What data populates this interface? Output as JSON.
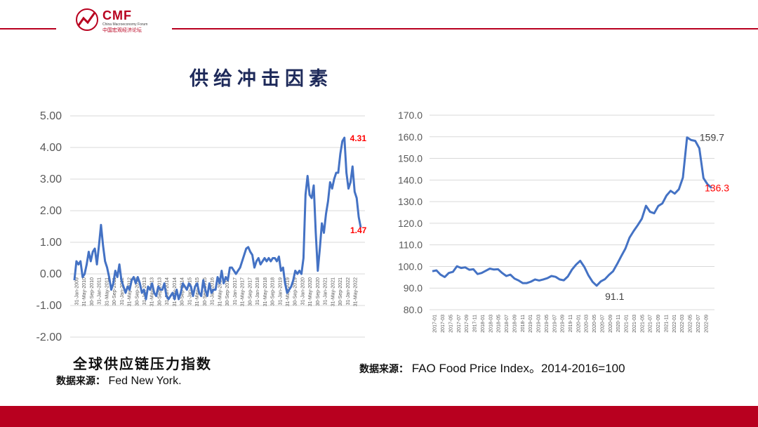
{
  "logo": {
    "name": "CMF",
    "subtitle": "China Macroeconomy Forum",
    "subtitle_cn": "中国宏观经济论坛"
  },
  "slide_title": "供给冲击因素",
  "left_caption": "全球供应链压力指数",
  "left_source_prefix": "数据来源：",
  "left_source": "Fed New York.",
  "right_source_prefix": "数据来源：",
  "right_source": "FAO Food Price Index。2014-2016=100",
  "colors": {
    "brand": "#b8001f",
    "line": "#4472c4",
    "annotation_red": "#ff0000",
    "grid": "#d9d9d9"
  },
  "chart_data": [
    {
      "type": "line",
      "title": "",
      "ylim": [
        -2.0,
        5.0
      ],
      "y_ticks": [
        "5.00",
        "4.00",
        "3.00",
        "2.00",
        "1.00",
        "0.00",
        "-1.00",
        "-2.00"
      ],
      "grid": true,
      "x_tick_labels": [
        "31-Jan-2009",
        "31-May-2010",
        "30-Sep-2010",
        "31-Jan-2011",
        "31-May-2011",
        "30-Sep-2011",
        "31-Jan-2012",
        "31-May-2012",
        "30-Sep-2012",
        "31-Jan-2013",
        "31-May-2013",
        "30-Sep-2013",
        "31-Jan-2014",
        "31-May-2014",
        "30-Sep-2014",
        "31-Jan-2015",
        "31-May-2015",
        "30-Sep-2015",
        "31-Jan-2016",
        "31-May-2016",
        "30-Sep-2016",
        "31-Jan-2017",
        "31-May-2017",
        "30-Sep-2017",
        "31-Jan-2018",
        "31-May-2018",
        "30-Sep-2018",
        "31-Jan-2019",
        "31-May-2019",
        "30-Sep-2019",
        "31-Jan-2020",
        "31-May-2020",
        "30-Sep-2020",
        "31-Jan-2021",
        "31-May-2021",
        "30-Sep-2021",
        "31-Jan-2022",
        "31-May-2022"
      ],
      "annotations": [
        {
          "label": "4.31",
          "value": 4.31
        },
        {
          "label": "1.47",
          "value": 1.47
        }
      ],
      "series": [
        {
          "values": [
            -0.2,
            0.4,
            0.3,
            0.4,
            -0.1,
            0.0,
            0.3,
            0.7,
            0.4,
            0.7,
            0.8,
            0.3,
            0.9,
            1.55,
            0.9,
            0.4,
            0.2,
            -0.1,
            -0.5,
            -0.3,
            0.1,
            -0.1,
            0.3,
            -0.2,
            -0.4,
            -0.6,
            -0.4,
            -0.5,
            -0.2,
            -0.1,
            -0.3,
            -0.1,
            -0.3,
            -0.6,
            -0.5,
            -0.8,
            -0.4,
            -0.5,
            -0.3,
            -0.6,
            -0.7,
            -0.4,
            -0.5,
            -0.5,
            -0.3,
            -0.7,
            -0.8,
            -0.7,
            -0.6,
            -0.8,
            -0.5,
            -0.8,
            -0.6,
            -0.3,
            -0.4,
            -0.5,
            -0.3,
            -0.4,
            -0.7,
            -0.4,
            -0.3,
            -0.6,
            -0.7,
            -0.2,
            -0.5,
            -0.7,
            -0.3,
            -0.6,
            -0.5,
            -0.5,
            -0.1,
            -0.3,
            0.1,
            -0.3,
            -0.1,
            -0.2,
            0.2,
            0.2,
            0.1,
            0.0,
            0.1,
            0.2,
            0.4,
            0.6,
            0.8,
            0.85,
            0.7,
            0.6,
            0.2,
            0.4,
            0.5,
            0.3,
            0.4,
            0.5,
            0.4,
            0.5,
            0.4,
            0.5,
            0.5,
            0.4,
            0.55,
            0.1,
            0.2,
            -0.3,
            -0.6,
            -0.5,
            -0.4,
            -0.2,
            0.1,
            0.0,
            0.1,
            0.0,
            0.5,
            2.5,
            3.1,
            2.5,
            2.4,
            2.8,
            1.3,
            0.1,
            0.8,
            1.6,
            1.3,
            1.9,
            2.3,
            2.9,
            2.7,
            3.0,
            3.2,
            3.2,
            3.8,
            4.2,
            4.31,
            3.2,
            2.7,
            2.9,
            3.4,
            2.6,
            2.4,
            1.8,
            1.47
          ]
        }
      ]
    },
    {
      "type": "line",
      "title": "",
      "ylim": [
        80.0,
        170.0
      ],
      "y_ticks": [
        "170.0",
        "160.0",
        "150.0",
        "140.0",
        "130.0",
        "120.0",
        "110.0",
        "100.0",
        "90.0",
        "80.0"
      ],
      "grid": true,
      "x_tick_labels": [
        "2017-01",
        "2017-03",
        "2017-05",
        "2017-07",
        "2017-09",
        "2017-11",
        "2018-01",
        "2018-03",
        "2018-05",
        "2018-07",
        "2018-09",
        "2018-11",
        "2019-01",
        "2019-03",
        "2019-05",
        "2019-07",
        "2019-09",
        "2019-11",
        "2020-01",
        "2020-03",
        "2020-05",
        "2020-07",
        "2020-09",
        "2020-11",
        "2021-01",
        "2021-03",
        "2021-05",
        "2021-07",
        "2021-09",
        "2021-11",
        "2022-01",
        "2022-03",
        "2022-05",
        "2022-07",
        "2022-09"
      ],
      "annotations": [
        {
          "label": "91.1",
          "value": 91.1
        },
        {
          "label": "159.7",
          "value": 159.7
        },
        {
          "label": "136.3",
          "value": 136.3
        }
      ],
      "series": [
        {
          "values": [
            97.8,
            98.2,
            96.2,
            95.1,
            97.0,
            97.5,
            100.1,
            99.3,
            99.6,
            98.5,
            98.7,
            96.5,
            97.0,
            98.0,
            99.0,
            98.6,
            98.7,
            97.0,
            95.6,
            96.2,
            94.4,
            93.5,
            92.3,
            92.3,
            93.0,
            94.0,
            93.5,
            94.0,
            94.6,
            95.6,
            95.2,
            94.0,
            93.6,
            95.4,
            98.6,
            100.9,
            102.6,
            99.8,
            95.9,
            92.9,
            91.1,
            93.1,
            94.1,
            96.1,
            97.8,
            101.2,
            104.8,
            108.3,
            113.3,
            116.4,
            119.1,
            122.1,
            128.1,
            125.3,
            124.6,
            128.0,
            129.2,
            132.8,
            135.0,
            133.7,
            135.7,
            141.1,
            159.7,
            158.5,
            158.1,
            154.7,
            140.9,
            138.0,
            136.3
          ]
        }
      ]
    }
  ]
}
